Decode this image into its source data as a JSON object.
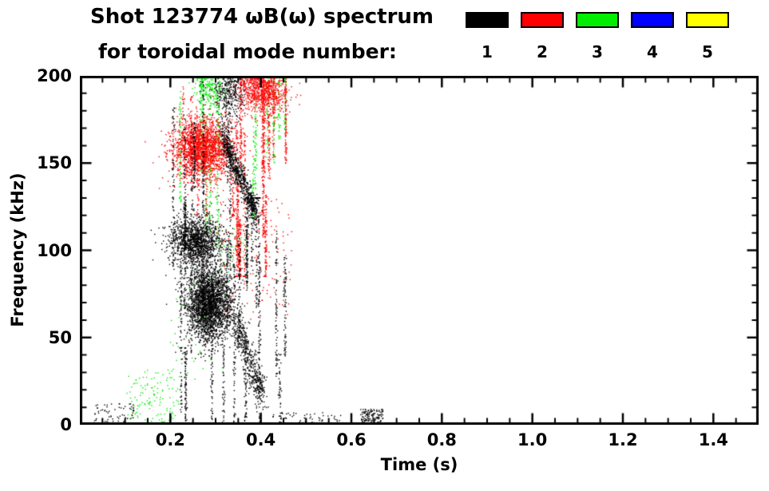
{
  "title": {
    "line1": "Shot 123774 ωB(ω) spectrum",
    "line2": "for toroidal mode number:"
  },
  "axes": {
    "xlabel": "Time (s)",
    "ylabel": "Frequency (kHz)",
    "xlim": [
      0,
      1.5
    ],
    "ylim": [
      0,
      200
    ],
    "x_major_ticks": [
      0.2,
      0.4,
      0.6,
      0.8,
      1.0,
      1.2,
      1.4
    ],
    "x_tick_labels": [
      "0.2",
      "0.4",
      "0.6",
      "0.8",
      "1.0",
      "1.2",
      "1.4"
    ],
    "x_minor_step": 0.05,
    "y_major_ticks": [
      0,
      50,
      100,
      150,
      200
    ],
    "y_tick_labels": [
      "0",
      "50",
      "100",
      "150",
      "200"
    ],
    "y_minor_step": 10
  },
  "legend": {
    "modes": [
      {
        "label": "1",
        "color": "#000000"
      },
      {
        "label": "2",
        "color": "#ff0000"
      },
      {
        "label": "3",
        "color": "#00ee00"
      },
      {
        "label": "4",
        "color": "#0000ff"
      },
      {
        "label": "5",
        "color": "#ffff00"
      }
    ]
  },
  "chart_data": {
    "type": "scatter",
    "title": "Shot 123774 ωB(ω) spectrum for toroidal mode number",
    "xlabel": "Time (s)",
    "ylabel": "Frequency (kHz)",
    "xlim": [
      0,
      1.5
    ],
    "ylim": [
      0,
      200
    ],
    "legend_position": "top-right",
    "grid": false,
    "series": [
      {
        "name": "n=1",
        "color": "#000000",
        "clusters": [
          {
            "type": "blob",
            "cx": 0.255,
            "cy": 105,
            "st": 0.028,
            "sf": 7,
            "n": 1400
          },
          {
            "type": "blob",
            "cx": 0.285,
            "cy": 70,
            "st": 0.024,
            "sf": 11,
            "n": 2600
          },
          {
            "type": "blob",
            "cx": 0.33,
            "cy": 190,
            "st": 0.018,
            "sf": 9,
            "n": 350
          },
          {
            "type": "trace",
            "path": [
              [
                0.315,
                168
              ],
              [
                0.335,
                152
              ],
              [
                0.355,
                142
              ],
              [
                0.375,
                130
              ],
              [
                0.39,
                121
              ]
            ],
            "jt": 0.005,
            "jf": 4,
            "n": 800
          },
          {
            "type": "trace",
            "path": [
              [
                0.345,
                60
              ],
              [
                0.365,
                45
              ],
              [
                0.385,
                28
              ],
              [
                0.405,
                18
              ]
            ],
            "jt": 0.006,
            "jf": 6,
            "n": 500
          },
          {
            "type": "streaks",
            "t0": 0.205,
            "t1": 0.34,
            "f0": 0,
            "f1": 200,
            "k": 14,
            "n": 1100,
            "smin": 15,
            "smax": 70
          },
          {
            "type": "streaks",
            "t0": 0.34,
            "t1": 0.46,
            "f0": 0,
            "f1": 130,
            "k": 12,
            "n": 900,
            "smin": 15,
            "smax": 60
          },
          {
            "type": "uniform",
            "t0": 0.62,
            "t1": 0.67,
            "f0": 0,
            "f1": 9,
            "n": 140
          },
          {
            "type": "uniform",
            "t0": 0.03,
            "t1": 0.12,
            "f0": 0,
            "f1": 12,
            "n": 70
          },
          {
            "type": "uniform",
            "t0": 0.42,
            "t1": 0.58,
            "f0": 0,
            "f1": 7,
            "n": 60
          }
        ]
      },
      {
        "name": "n=2",
        "color": "#ff0000",
        "clusters": [
          {
            "type": "blob",
            "cx": 0.27,
            "cy": 158,
            "st": 0.033,
            "sf": 9,
            "n": 2000
          },
          {
            "type": "blob",
            "cx": 0.4,
            "cy": 192,
            "st": 0.028,
            "sf": 7,
            "n": 900
          },
          {
            "type": "streaks",
            "t0": 0.34,
            "t1": 0.46,
            "f0": 85,
            "f1": 200,
            "k": 12,
            "n": 1200,
            "smin": 20,
            "smax": 60
          },
          {
            "type": "streaks",
            "t0": 0.22,
            "t1": 0.34,
            "f0": 120,
            "f1": 200,
            "k": 6,
            "n": 300,
            "smin": 10,
            "smax": 40
          },
          {
            "type": "uniform",
            "t0": 0.3,
            "t1": 0.47,
            "f0": 60,
            "f1": 130,
            "n": 150
          }
        ]
      },
      {
        "name": "n=3",
        "color": "#00ee00",
        "clusters": [
          {
            "type": "uniform",
            "t0": 0.1,
            "t1": 0.22,
            "f0": 0,
            "f1": 32,
            "n": 130
          },
          {
            "type": "streaks",
            "t0": 0.22,
            "t1": 0.31,
            "f0": 110,
            "f1": 200,
            "k": 7,
            "n": 450,
            "smin": 15,
            "smax": 45
          },
          {
            "type": "blob",
            "cx": 0.285,
            "cy": 196,
            "st": 0.015,
            "sf": 6,
            "n": 250
          },
          {
            "type": "streaks",
            "t0": 0.38,
            "t1": 0.47,
            "f0": 120,
            "f1": 200,
            "k": 6,
            "n": 350,
            "smin": 15,
            "smax": 40
          },
          {
            "type": "uniform",
            "t0": 0.3,
            "t1": 0.37,
            "f0": 90,
            "f1": 115,
            "n": 50
          },
          {
            "type": "uniform",
            "t0": 0.2,
            "t1": 0.33,
            "f0": 25,
            "f1": 90,
            "n": 60
          }
        ]
      },
      {
        "name": "n=4",
        "color": "#0000ff",
        "clusters": []
      },
      {
        "name": "n=5",
        "color": "#ffff00",
        "clusters": []
      }
    ]
  }
}
